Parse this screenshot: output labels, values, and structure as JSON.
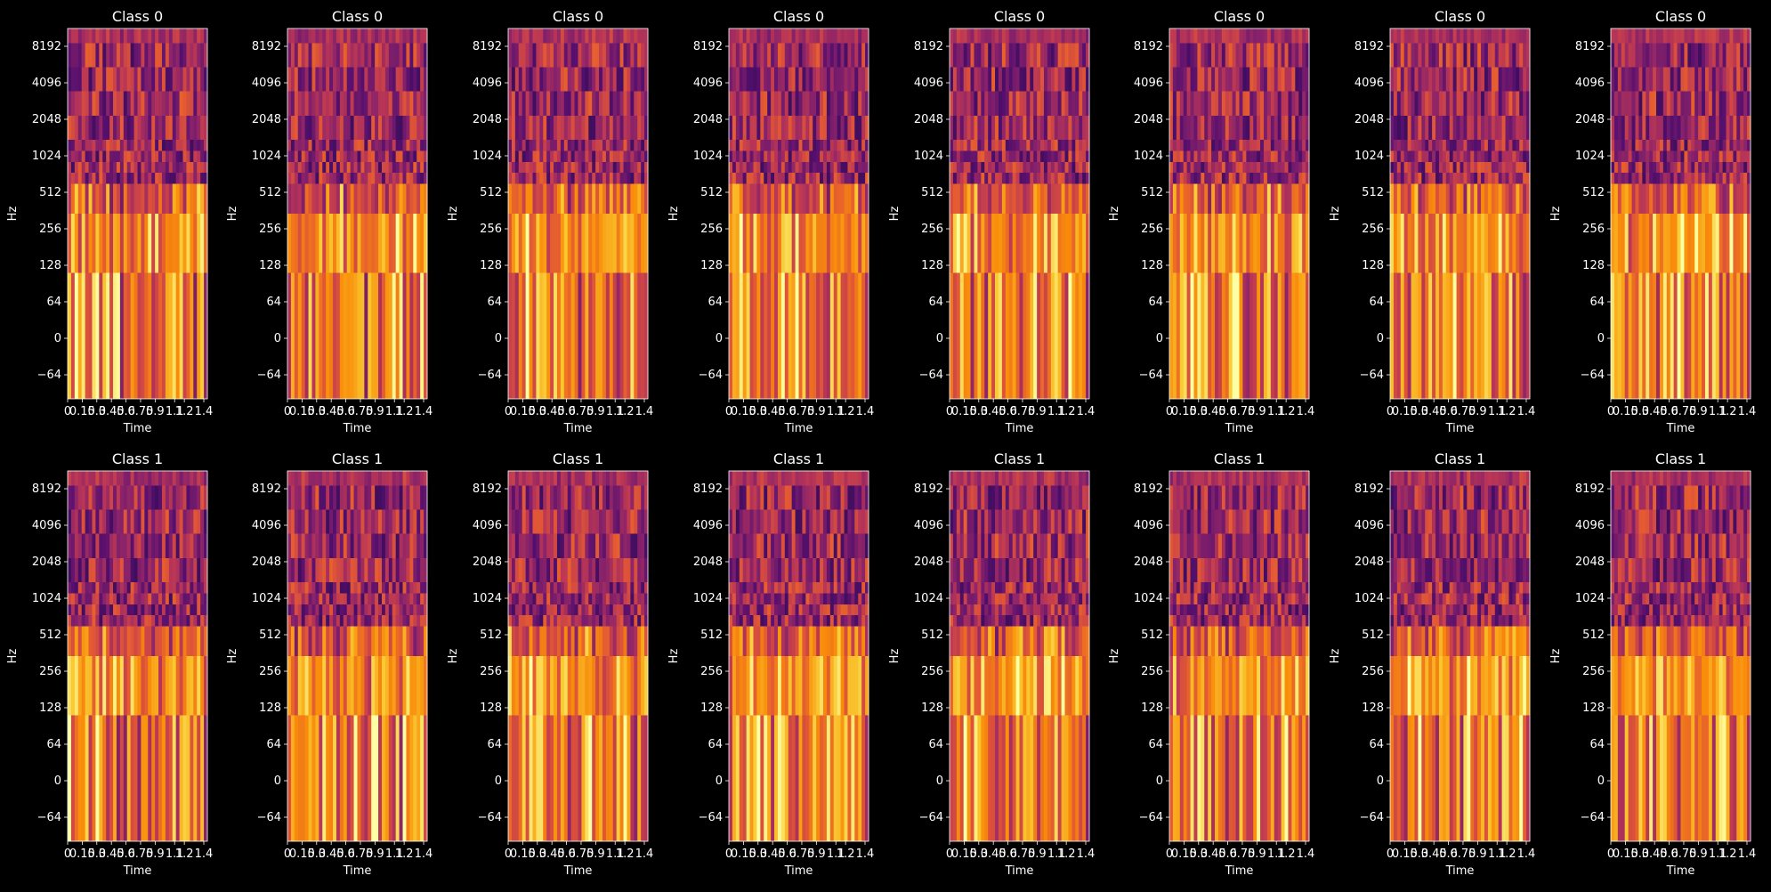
{
  "figure": {
    "background": "#000000",
    "foreground": "#ffffff",
    "colormap": "inferno",
    "rows": 2,
    "cols": 8
  },
  "chart_data": [
    {
      "type": "heatmap",
      "title": "Class 0",
      "xlabel": "Time",
      "ylabel": "Hz",
      "xticks": [
        "0",
        "0.15",
        "0.3",
        "0.45",
        "0.6",
        "0.75",
        "0.9",
        "1.1",
        "1.2",
        "1.4"
      ],
      "yticks": [
        "-64",
        "0",
        "64",
        "128",
        "256",
        "512",
        "1024",
        "2048",
        "4096",
        "8192"
      ],
      "ylim": [
        -128,
        11025
      ]
    },
    {
      "type": "heatmap",
      "title": "Class 0",
      "xlabel": "Time",
      "ylabel": "Hz",
      "xticks": [
        "0",
        "0.15",
        "0.3",
        "0.45",
        "0.6",
        "0.75",
        "0.9",
        "1.1",
        "1.2",
        "1.4"
      ],
      "yticks": [
        "-64",
        "0",
        "64",
        "128",
        "256",
        "512",
        "1024",
        "2048",
        "4096",
        "8192"
      ],
      "ylim": [
        -128,
        11025
      ]
    },
    {
      "type": "heatmap",
      "title": "Class 0",
      "xlabel": "Time",
      "ylabel": "Hz",
      "xticks": [
        "0",
        "0.15",
        "0.3",
        "0.45",
        "0.6",
        "0.75",
        "0.9",
        "1.1",
        "1.2",
        "1.4"
      ],
      "yticks": [
        "-64",
        "0",
        "64",
        "128",
        "256",
        "512",
        "1024",
        "2048",
        "4096",
        "8192"
      ],
      "ylim": [
        -128,
        11025
      ]
    },
    {
      "type": "heatmap",
      "title": "Class 0",
      "xlabel": "Time",
      "ylabel": "Hz",
      "xticks": [
        "0",
        "0.15",
        "0.3",
        "0.45",
        "0.6",
        "0.75",
        "0.9",
        "1.1",
        "1.2",
        "1.4"
      ],
      "yticks": [
        "-64",
        "0",
        "64",
        "128",
        "256",
        "512",
        "1024",
        "2048",
        "4096",
        "8192"
      ],
      "ylim": [
        -128,
        11025
      ]
    },
    {
      "type": "heatmap",
      "title": "Class 0",
      "xlabel": "Time",
      "ylabel": "Hz",
      "xticks": [
        "0",
        "0.15",
        "0.3",
        "0.45",
        "0.6",
        "0.75",
        "0.9",
        "1.1",
        "1.2",
        "1.4"
      ],
      "yticks": [
        "-64",
        "0",
        "64",
        "128",
        "256",
        "512",
        "1024",
        "2048",
        "4096",
        "8192"
      ],
      "ylim": [
        -128,
        11025
      ]
    },
    {
      "type": "heatmap",
      "title": "Class 0",
      "xlabel": "Time",
      "ylabel": "Hz",
      "xticks": [
        "0",
        "0.15",
        "0.3",
        "0.45",
        "0.6",
        "0.75",
        "0.9",
        "1.1",
        "1.2",
        "1.4"
      ],
      "yticks": [
        "-64",
        "0",
        "64",
        "128",
        "256",
        "512",
        "1024",
        "2048",
        "4096",
        "8192"
      ],
      "ylim": [
        -128,
        11025
      ]
    },
    {
      "type": "heatmap",
      "title": "Class 0",
      "xlabel": "Time",
      "ylabel": "Hz",
      "xticks": [
        "0",
        "0.15",
        "0.3",
        "0.45",
        "0.6",
        "0.75",
        "0.9",
        "1.1",
        "1.2",
        "1.4"
      ],
      "yticks": [
        "-64",
        "0",
        "64",
        "128",
        "256",
        "512",
        "1024",
        "2048",
        "4096",
        "8192"
      ],
      "ylim": [
        -128,
        11025
      ]
    },
    {
      "type": "heatmap",
      "title": "Class 0",
      "xlabel": "Time",
      "ylabel": "Hz",
      "xticks": [
        "0",
        "0.15",
        "0.3",
        "0.45",
        "0.6",
        "0.75",
        "0.9",
        "1.1",
        "1.2",
        "1.4"
      ],
      "yticks": [
        "-64",
        "0",
        "64",
        "128",
        "256",
        "512",
        "1024",
        "2048",
        "4096",
        "8192"
      ],
      "ylim": [
        -128,
        11025
      ]
    },
    {
      "type": "heatmap",
      "title": "Class 1",
      "xlabel": "Time",
      "ylabel": "Hz",
      "xticks": [
        "0",
        "0.15",
        "0.3",
        "0.45",
        "0.6",
        "0.75",
        "0.9",
        "1.1",
        "1.2",
        "1.4"
      ],
      "yticks": [
        "-64",
        "0",
        "64",
        "128",
        "256",
        "512",
        "1024",
        "2048",
        "4096",
        "8192"
      ],
      "ylim": [
        -128,
        11025
      ]
    },
    {
      "type": "heatmap",
      "title": "Class 1",
      "xlabel": "Time",
      "ylabel": "Hz",
      "xticks": [
        "0",
        "0.15",
        "0.3",
        "0.45",
        "0.6",
        "0.75",
        "0.9",
        "1.1",
        "1.2",
        "1.4"
      ],
      "yticks": [
        "-64",
        "0",
        "64",
        "128",
        "256",
        "512",
        "1024",
        "2048",
        "4096",
        "8192"
      ],
      "ylim": [
        -128,
        11025
      ]
    },
    {
      "type": "heatmap",
      "title": "Class 1",
      "xlabel": "Time",
      "ylabel": "Hz",
      "xticks": [
        "0",
        "0.15",
        "0.3",
        "0.45",
        "0.6",
        "0.75",
        "0.9",
        "1.1",
        "1.2",
        "1.4"
      ],
      "yticks": [
        "-64",
        "0",
        "64",
        "128",
        "256",
        "512",
        "1024",
        "2048",
        "4096",
        "8192"
      ],
      "ylim": [
        -128,
        11025
      ]
    },
    {
      "type": "heatmap",
      "title": "Class 1",
      "xlabel": "Time",
      "ylabel": "Hz",
      "xticks": [
        "0",
        "0.15",
        "0.3",
        "0.45",
        "0.6",
        "0.75",
        "0.9",
        "1.1",
        "1.2",
        "1.4"
      ],
      "yticks": [
        "-64",
        "0",
        "64",
        "128",
        "256",
        "512",
        "1024",
        "2048",
        "4096",
        "8192"
      ],
      "ylim": [
        -128,
        11025
      ]
    },
    {
      "type": "heatmap",
      "title": "Class 1",
      "xlabel": "Time",
      "ylabel": "Hz",
      "xticks": [
        "0",
        "0.15",
        "0.3",
        "0.45",
        "0.6",
        "0.75",
        "0.9",
        "1.1",
        "1.2",
        "1.4"
      ],
      "yticks": [
        "-64",
        "0",
        "64",
        "128",
        "256",
        "512",
        "1024",
        "2048",
        "4096",
        "8192"
      ],
      "ylim": [
        -128,
        11025
      ]
    },
    {
      "type": "heatmap",
      "title": "Class 1",
      "xlabel": "Time",
      "ylabel": "Hz",
      "xticks": [
        "0",
        "0.15",
        "0.3",
        "0.45",
        "0.6",
        "0.75",
        "0.9",
        "1.1",
        "1.2",
        "1.4"
      ],
      "yticks": [
        "-64",
        "0",
        "64",
        "128",
        "256",
        "512",
        "1024",
        "2048",
        "4096",
        "8192"
      ],
      "ylim": [
        -128,
        11025
      ]
    },
    {
      "type": "heatmap",
      "title": "Class 1",
      "xlabel": "Time",
      "ylabel": "Hz",
      "xticks": [
        "0",
        "0.15",
        "0.3",
        "0.45",
        "0.6",
        "0.75",
        "0.9",
        "1.1",
        "1.2",
        "1.4"
      ],
      "yticks": [
        "-64",
        "0",
        "64",
        "128",
        "256",
        "512",
        "1024",
        "2048",
        "4096",
        "8192"
      ],
      "ylim": [
        -128,
        11025
      ]
    },
    {
      "type": "heatmap",
      "title": "Class 1",
      "xlabel": "Time",
      "ylabel": "Hz",
      "xticks": [
        "0",
        "0.15",
        "0.3",
        "0.45",
        "0.6",
        "0.75",
        "0.9",
        "1.1",
        "1.2",
        "1.4"
      ],
      "yticks": [
        "-64",
        "0",
        "64",
        "128",
        "256",
        "512",
        "1024",
        "2048",
        "4096",
        "8192"
      ],
      "ylim": [
        -128,
        11025
      ]
    }
  ]
}
